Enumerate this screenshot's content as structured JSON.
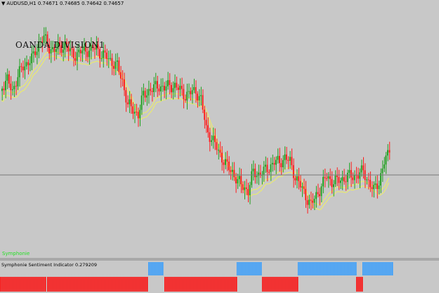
{
  "header": {
    "symbol_timeframe": "AUDUSD,H1",
    "ohlc": "0.74671 0.74685 0.74642 0.74657"
  },
  "chart_overlay": {
    "broker_label": "OANDA DIVISION1"
  },
  "subwindow1": {
    "label": "Symphonie"
  },
  "subwindow2": {
    "label": "Symphonie Sentiment Indicator 0.279209"
  },
  "colors": {
    "background": "#c8c8c8",
    "bull": "#1fa01f",
    "bear": "#ff1a1a",
    "ma": "#f0f060",
    "sentiment_up": "#2f9bff",
    "sentiment_down": "#ff0000",
    "indicator_text": "#26e026"
  },
  "chart_data": {
    "type": "candlestick",
    "title": "AUDUSD,H1",
    "candles_close_trend": [
      0.3,
      0.28,
      0.32,
      0.26,
      0.22,
      0.2,
      0.18,
      0.12,
      0.1,
      0.14,
      0.15,
      0.14,
      0.13,
      0.16,
      0.17,
      0.16,
      0.15,
      0.15,
      0.14,
      0.17,
      0.18,
      0.2,
      0.22,
      0.28,
      0.38,
      0.4,
      0.42,
      0.34,
      0.32,
      0.31,
      0.3,
      0.31,
      0.3,
      0.3,
      0.32,
      0.34,
      0.33,
      0.32,
      0.36,
      0.48,
      0.52,
      0.56,
      0.6,
      0.64,
      0.66,
      0.7,
      0.72,
      0.74,
      0.66,
      0.67,
      0.66,
      0.64,
      0.62,
      0.62,
      0.6,
      0.62,
      0.68,
      0.72,
      0.76,
      0.8,
      0.76,
      0.72,
      0.68,
      0.7,
      0.7,
      0.69,
      0.68,
      0.68,
      0.67,
      0.66,
      0.7,
      0.74,
      0.7,
      0.62,
      0.58
    ]
  },
  "sentiment_data": {
    "segments": [
      {
        "dir": "down",
        "from": 0,
        "to": 66
      },
      {
        "dir": "down",
        "from": 67,
        "to": 211
      },
      {
        "dir": "up",
        "from": 211,
        "to": 233
      },
      {
        "dir": "down",
        "from": 234,
        "to": 337
      },
      {
        "dir": "up",
        "from": 337,
        "to": 372
      },
      {
        "dir": "down",
        "from": 373,
        "to": 424
      },
      {
        "dir": "up",
        "from": 424,
        "to": 507
      },
      {
        "dir": "down",
        "from": 507,
        "to": 516
      },
      {
        "dir": "up",
        "from": 516,
        "to": 559
      }
    ]
  }
}
